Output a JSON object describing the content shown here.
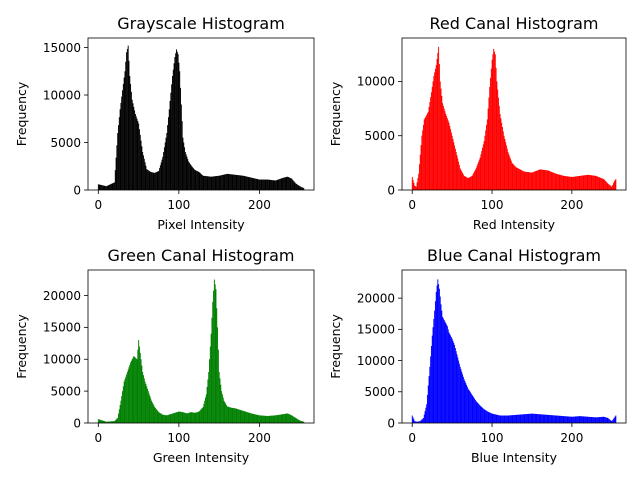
{
  "chart_data": [
    {
      "type": "bar",
      "title": "Grayscale Histogram",
      "xlabel": "Pixel Intensity",
      "ylabel": "Frequency",
      "color": "#000000",
      "xlim": [
        -12.8,
        267.8
      ],
      "ylim": [
        0,
        16000
      ],
      "xticks": [
        0,
        100,
        200
      ],
      "yticks": [
        0,
        5000,
        10000,
        15000
      ],
      "grid": false,
      "x": [
        0,
        10,
        20,
        24,
        27,
        30,
        33,
        35,
        37,
        39,
        42,
        46,
        50,
        55,
        60,
        65,
        70,
        75,
        80,
        85,
        88,
        92,
        95,
        97,
        99,
        101,
        103,
        105,
        108,
        112,
        116,
        120,
        125,
        130,
        140,
        150,
        160,
        170,
        180,
        190,
        200,
        210,
        220,
        230,
        235,
        240,
        245,
        250,
        255
      ],
      "values": [
        600,
        400,
        800,
        6000,
        8500,
        10500,
        12500,
        14500,
        15200,
        12000,
        9500,
        8000,
        7000,
        4000,
        2200,
        1900,
        1800,
        2000,
        3500,
        6000,
        8500,
        12000,
        14000,
        14800,
        14300,
        12500,
        9000,
        5500,
        4000,
        3000,
        2500,
        2100,
        1900,
        1500,
        1400,
        1500,
        1700,
        1600,
        1500,
        1300,
        1100,
        1100,
        1000,
        1300,
        1400,
        1200,
        700,
        400,
        200
      ]
    },
    {
      "type": "bar",
      "title": "Red Canal Histogram",
      "xlabel": "Red Intensity",
      "ylabel": "Frequency",
      "color": "#ff0000",
      "xlim": [
        -12.8,
        267.8
      ],
      "ylim": [
        0,
        14000
      ],
      "xticks": [
        0,
        100,
        200
      ],
      "yticks": [
        0,
        5000,
        10000
      ],
      "grid": false,
      "x": [
        0,
        3,
        5,
        8,
        12,
        15,
        20,
        24,
        27,
        30,
        33,
        35,
        38,
        42,
        46,
        50,
        55,
        60,
        65,
        70,
        75,
        80,
        85,
        90,
        94,
        97,
        100,
        102,
        104,
        106,
        110,
        115,
        120,
        125,
        130,
        140,
        150,
        160,
        170,
        180,
        190,
        200,
        210,
        220,
        230,
        240,
        245,
        250,
        253,
        255
      ],
      "values": [
        1200,
        400,
        300,
        1500,
        5000,
        6500,
        7200,
        9000,
        10500,
        11500,
        13200,
        10000,
        8000,
        7000,
        6200,
        5000,
        3500,
        2000,
        1300,
        1100,
        1300,
        2000,
        3000,
        4500,
        6500,
        9500,
        12000,
        13000,
        12500,
        10000,
        7000,
        5000,
        3500,
        2500,
        2100,
        1700,
        1600,
        1900,
        1800,
        1500,
        1300,
        1200,
        1300,
        1400,
        1300,
        1000,
        600,
        300,
        800,
        1000
      ]
    },
    {
      "type": "bar",
      "title": "Green Canal Histogram",
      "xlabel": "Green Intensity",
      "ylabel": "Frequency",
      "color": "#008000",
      "xlim": [
        -12.8,
        267.8
      ],
      "ylim": [
        0,
        24000
      ],
      "xticks": [
        0,
        100,
        200
      ],
      "yticks": [
        0,
        5000,
        10000,
        15000,
        20000
      ],
      "grid": false,
      "x": [
        0,
        10,
        20,
        24,
        28,
        32,
        36,
        40,
        44,
        48,
        50,
        52,
        55,
        58,
        62,
        66,
        70,
        75,
        80,
        85,
        90,
        95,
        100,
        105,
        110,
        115,
        120,
        125,
        130,
        134,
        137,
        140,
        142,
        144,
        146,
        148,
        150,
        153,
        156,
        160,
        165,
        170,
        180,
        190,
        200,
        210,
        220,
        230,
        235,
        240,
        245,
        250,
        255
      ],
      "values": [
        600,
        200,
        300,
        800,
        3500,
        6500,
        8000,
        9500,
        10500,
        10000,
        13000,
        11000,
        8000,
        6500,
        5000,
        3500,
        2500,
        1700,
        1300,
        1200,
        1400,
        1600,
        1800,
        1700,
        1500,
        1700,
        1600,
        1800,
        2500,
        4500,
        8000,
        14000,
        19000,
        22500,
        21000,
        15000,
        8000,
        5000,
        3500,
        2600,
        2400,
        2300,
        1900,
        1500,
        1200,
        1100,
        1200,
        1400,
        1500,
        1200,
        800,
        400,
        200
      ]
    },
    {
      "type": "bar",
      "title": "Blue Canal Histogram",
      "xlabel": "Blue Intensity",
      "ylabel": "Frequency",
      "color": "#0000ff",
      "xlim": [
        -12.8,
        267.8
      ],
      "ylim": [
        0,
        24500
      ],
      "xticks": [
        0,
        100,
        200
      ],
      "yticks": [
        0,
        5000,
        10000,
        15000,
        20000
      ],
      "grid": false,
      "x": [
        0,
        3,
        6,
        10,
        14,
        18,
        22,
        25,
        28,
        30,
        32,
        34,
        36,
        38,
        40,
        42,
        44,
        46,
        48,
        50,
        53,
        56,
        60,
        65,
        70,
        75,
        80,
        85,
        90,
        95,
        100,
        110,
        120,
        130,
        140,
        150,
        160,
        170,
        180,
        190,
        200,
        210,
        220,
        230,
        240,
        245,
        250,
        255
      ],
      "values": [
        1200,
        300,
        200,
        300,
        800,
        3000,
        9000,
        14000,
        18000,
        21000,
        23000,
        21500,
        19000,
        17000,
        16500,
        16000,
        15500,
        14500,
        14000,
        13500,
        12500,
        11000,
        9000,
        7000,
        5500,
        4500,
        3500,
        2800,
        2200,
        1800,
        1500,
        1200,
        1200,
        1300,
        1400,
        1500,
        1400,
        1300,
        1200,
        1100,
        1000,
        1100,
        1000,
        900,
        1000,
        800,
        300,
        1200
      ]
    }
  ]
}
